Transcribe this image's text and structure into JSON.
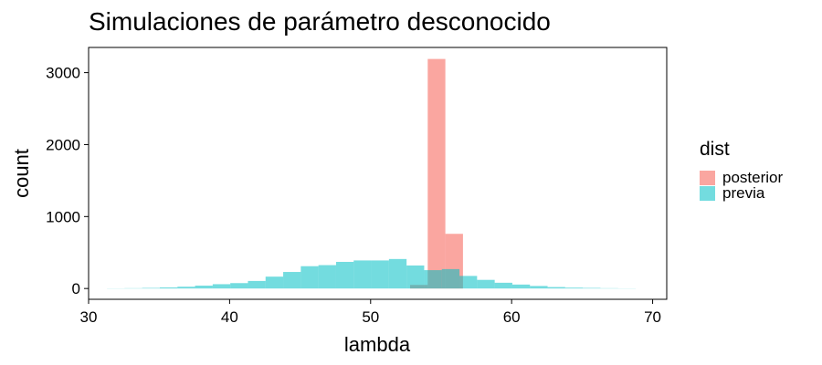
{
  "chart_data": {
    "type": "histogram",
    "title": "Simulaciones de parámetro desconocido",
    "xlabel": "lambda",
    "ylabel": "count",
    "xlim": [
      30,
      71
    ],
    "ylim": [
      -150,
      3350
    ],
    "xticks": [
      "30",
      "40",
      "50",
      "60",
      "70"
    ],
    "xtick_values": [
      30,
      40,
      50,
      60,
      70
    ],
    "yticks": [
      "0",
      "1000",
      "2000",
      "3000"
    ],
    "ytick_values": [
      0,
      1000,
      2000,
      3000
    ],
    "bin_width": 1.25,
    "grid": false,
    "legend": {
      "title": "dist",
      "position": "right"
    },
    "series": [
      {
        "name": "posterior",
        "color": "#F8766D",
        "bins": [
          {
            "x0": 52.8,
            "count": 50
          },
          {
            "x0": 54.05,
            "count": 3190
          },
          {
            "x0": 55.3,
            "count": 760
          }
        ]
      },
      {
        "name": "previa",
        "color": "#00BFC4",
        "bins": [
          {
            "x0": 31.3,
            "count": 2
          },
          {
            "x0": 32.55,
            "count": 4
          },
          {
            "x0": 33.8,
            "count": 8
          },
          {
            "x0": 35.05,
            "count": 15
          },
          {
            "x0": 36.3,
            "count": 25
          },
          {
            "x0": 37.55,
            "count": 40
          },
          {
            "x0": 38.8,
            "count": 60
          },
          {
            "x0": 40.05,
            "count": 75
          },
          {
            "x0": 41.3,
            "count": 105
          },
          {
            "x0": 42.55,
            "count": 165
          },
          {
            "x0": 43.8,
            "count": 230
          },
          {
            "x0": 45.05,
            "count": 310
          },
          {
            "x0": 46.3,
            "count": 325
          },
          {
            "x0": 47.55,
            "count": 370
          },
          {
            "x0": 48.8,
            "count": 390
          },
          {
            "x0": 50.05,
            "count": 390
          },
          {
            "x0": 51.3,
            "count": 410
          },
          {
            "x0": 52.55,
            "count": 320
          },
          {
            "x0": 53.8,
            "count": 255
          },
          {
            "x0": 55.05,
            "count": 270
          },
          {
            "x0": 56.3,
            "count": 175
          },
          {
            "x0": 57.55,
            "count": 120
          },
          {
            "x0": 58.8,
            "count": 80
          },
          {
            "x0": 60.05,
            "count": 55
          },
          {
            "x0": 61.3,
            "count": 35
          },
          {
            "x0": 62.55,
            "count": 20
          },
          {
            "x0": 63.8,
            "count": 12
          },
          {
            "x0": 65.05,
            "count": 8
          },
          {
            "x0": 66.3,
            "count": 4
          },
          {
            "x0": 67.55,
            "count": 2
          }
        ]
      }
    ]
  }
}
